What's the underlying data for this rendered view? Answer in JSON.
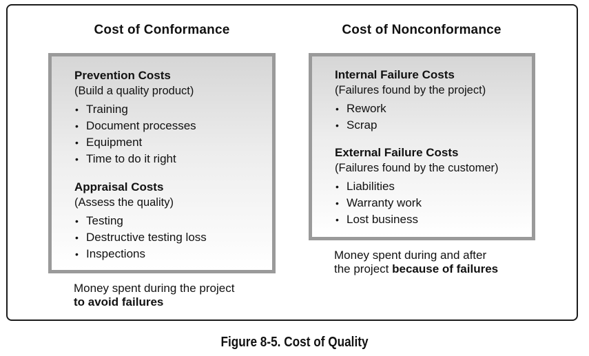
{
  "left": {
    "title": "Cost of Conformance",
    "sections": [
      {
        "heading": "Prevention Costs",
        "subheading": "(Build a quality product)",
        "items": [
          "Training",
          "Document processes",
          "Equipment",
          "Time to do it right"
        ]
      },
      {
        "heading": "Appraisal Costs",
        "subheading": "(Assess the quality)",
        "items": [
          "Testing",
          "Destructive testing loss",
          "Inspections"
        ]
      }
    ],
    "caption": {
      "line1": "Money spent during the project",
      "line2_bold": "to avoid failures"
    }
  },
  "right": {
    "title": "Cost of Nonconformance",
    "sections": [
      {
        "heading": "Internal Failure Costs",
        "subheading": "(Failures found by the project)",
        "items": [
          "Rework",
          "Scrap"
        ]
      },
      {
        "heading": "External Failure Costs",
        "subheading": "(Failures found by the customer)",
        "items": [
          "Liabilities",
          "Warranty work",
          "Lost business"
        ]
      }
    ],
    "caption": {
      "line1": "Money spent during and after",
      "line2_prefix": "the project ",
      "line2_bold": "because of failures"
    }
  },
  "bullet_glyph": "•",
  "figure_caption": "Figure 8-5. Cost of Quality"
}
